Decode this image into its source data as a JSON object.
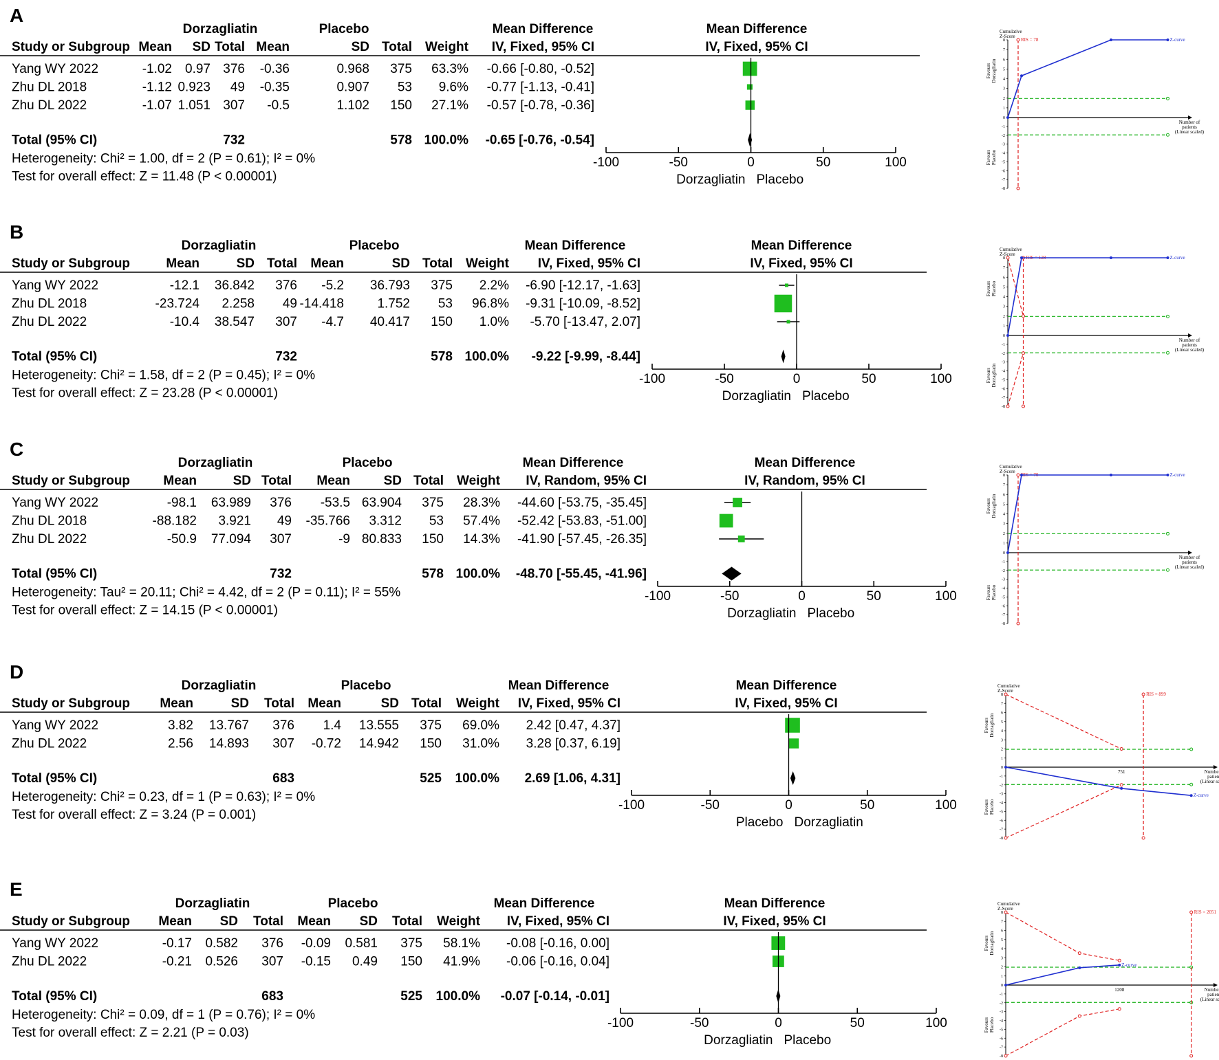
{
  "chart_data": [
    {
      "type": "forest",
      "panel": "A",
      "model_label": "IV, Fixed, 95% CI",
      "headers": {
        "study": "Study or Subgroup",
        "group1": "Dorzagliatin",
        "group2": "Placebo",
        "mean": "Mean",
        "sd": "SD",
        "total": "Total",
        "weight": "Weight",
        "md": "Mean Difference",
        "md_plot": "Mean Difference"
      },
      "studies": [
        {
          "name": "Yang WY 2022",
          "m1": "-1.02",
          "sd1": "0.97",
          "n1": "376",
          "m2": "-0.36",
          "sd2": "0.968",
          "n2": "375",
          "weight": "63.3%",
          "ci_text": "-0.66 [-0.80, -0.52]",
          "md": -0.66,
          "lo": -0.8,
          "hi": -0.52,
          "w": 63.3
        },
        {
          "name": "Zhu DL 2018",
          "m1": "-1.12",
          "sd1": "0.923",
          "n1": "49",
          "m2": "-0.35",
          "sd2": "0.907",
          "n2": "53",
          "weight": "9.6%",
          "ci_text": "-0.77 [-1.13, -0.41]",
          "md": -0.77,
          "lo": -1.13,
          "hi": -0.41,
          "w": 9.6
        },
        {
          "name": "Zhu DL 2022",
          "m1": "-1.07",
          "sd1": "1.051",
          "n1": "307",
          "m2": "-0.5",
          "sd2": "1.102",
          "n2": "150",
          "weight": "27.1%",
          "ci_text": "-0.57 [-0.78, -0.36]",
          "md": -0.57,
          "lo": -0.78,
          "hi": -0.36,
          "w": 27.1
        }
      ],
      "total": {
        "label": "Total (95% CI)",
        "n1": "732",
        "n2": "578",
        "weight": "100.0%",
        "ci_text": "-0.65 [-0.76, -0.54]",
        "md": -0.65,
        "lo": -0.76,
        "hi": -0.54
      },
      "heterogeneity": "Heterogeneity: Chi² = 1.00, df = 2 (P = 0.61); I² = 0%",
      "overall": "Test for overall effect: Z = 11.48 (P < 0.00001)",
      "axis": {
        "ticks": [
          -100,
          -50,
          0,
          50,
          100
        ],
        "tick_labels": [
          "-100",
          "-50",
          "0",
          "50",
          "100"
        ],
        "left_label": "Dorzagliatin",
        "right_label": "Placebo"
      },
      "tsa": {
        "title_line1": "Cumulative",
        "title_line2": "Z-Score",
        "ris_label": "RIS = 78",
        "z_label": "Z-curve",
        "fav_top": [
          "Favours",
          "Dorzagliatin"
        ],
        "fav_bottom": [
          "Favours",
          "Placebo"
        ],
        "x_title": [
          "Number of",
          "patients",
          "(Linear scaled)"
        ],
        "y_ticks": [
          "8",
          "7",
          "6",
          "5",
          "4",
          "3",
          "2",
          "1",
          "0",
          "-1",
          "-2",
          "-3",
          "-4",
          "-5",
          "-6",
          "-7",
          "-8"
        ],
        "sample_label": "",
        "zmax": 8,
        "ris_frac": 0.06,
        "z_curve": [
          [
            0,
            0
          ],
          [
            0.08,
            4.3
          ],
          [
            0.6,
            8
          ],
          [
            0.93,
            8
          ]
        ],
        "monitor_upper": [],
        "monitor_lower": [],
        "crit": 1.96
      }
    },
    {
      "type": "forest",
      "panel": "B",
      "model_label": "IV, Fixed, 95% CI",
      "headers": {
        "study": "Study or Subgroup",
        "group1": "Dorzagliatin",
        "group2": "Placebo",
        "mean": "Mean",
        "sd": "SD",
        "total": "Total",
        "weight": "Weight",
        "md": "Mean Difference",
        "md_plot": "Mean Difference"
      },
      "studies": [
        {
          "name": "Yang WY 2022",
          "m1": "-12.1",
          "sd1": "36.842",
          "n1": "376",
          "m2": "-5.2",
          "sd2": "36.793",
          "n2": "375",
          "weight": "2.2%",
          "ci_text": "-6.90 [-12.17, -1.63]",
          "md": -6.9,
          "lo": -12.17,
          "hi": -1.63,
          "w": 2.2
        },
        {
          "name": "Zhu DL 2018",
          "m1": "-23.724",
          "sd1": "2.258",
          "n1": "49",
          "m2": "-14.418",
          "sd2": "1.752",
          "n2": "53",
          "weight": "96.8%",
          "ci_text": "-9.31 [-10.09, -8.52]",
          "md": -9.31,
          "lo": -10.09,
          "hi": -8.52,
          "w": 96.8
        },
        {
          "name": "Zhu DL 2022",
          "m1": "-10.4",
          "sd1": "38.547",
          "n1": "307",
          "m2": "-4.7",
          "sd2": "40.417",
          "n2": "150",
          "weight": "1.0%",
          "ci_text": "-5.70 [-13.47, 2.07]",
          "md": -5.7,
          "lo": -13.47,
          "hi": 2.07,
          "w": 1.0
        }
      ],
      "total": {
        "label": "Total (95% CI)",
        "n1": "732",
        "n2": "578",
        "weight": "100.0%",
        "ci_text": "-9.22 [-9.99, -8.44]",
        "md": -9.22,
        "lo": -9.99,
        "hi": -8.44
      },
      "heterogeneity": "Heterogeneity: Chi² = 1.58, df = 2 (P = 0.45); I² = 0%",
      "overall": "Test for overall effect: Z = 23.28 (P < 0.00001)",
      "axis": {
        "ticks": [
          -100,
          -50,
          0,
          50,
          100
        ],
        "tick_labels": [
          "-100",
          "-50",
          "0",
          "50",
          "100"
        ],
        "left_label": "Dorzagliatin",
        "right_label": "Placebo"
      },
      "tsa": {
        "title_line1": "Cumulative",
        "title_line2": "Z-Score",
        "ris_label": "RIS = 128",
        "z_label": "Z-curve",
        "fav_top": [
          "Favours",
          "Placebo"
        ],
        "fav_bottom": [
          "Favours",
          "Dorzagliatin"
        ],
        "x_title": [
          "Number of",
          "patients",
          "(Linear scaled)"
        ],
        "y_ticks": [
          "8",
          "7",
          "6",
          "5",
          "4",
          "3",
          "2",
          "1",
          "0",
          "-1",
          "-2",
          "-3",
          "-4",
          "-5",
          "-6",
          "-7",
          "-8"
        ],
        "sample_label": "",
        "zmax": 8,
        "ris_frac": 0.09,
        "z_curve": [
          [
            0,
            0
          ],
          [
            0.08,
            8
          ],
          [
            0.6,
            8
          ],
          [
            0.93,
            8
          ]
        ],
        "monitor_upper": [
          [
            0,
            8
          ],
          [
            0.09,
            2
          ]
        ],
        "monitor_lower": [
          [
            0,
            -8
          ],
          [
            0.09,
            -2
          ]
        ],
        "crit": 1.96
      }
    },
    {
      "type": "forest",
      "panel": "C",
      "model_label": "IV, Random, 95% CI",
      "headers": {
        "study": "Study or Subgroup",
        "group1": "Dorzagliatin",
        "group2": "Placebo",
        "mean": "Mean",
        "sd": "SD",
        "total": "Total",
        "weight": "Weight",
        "md": "Mean Difference",
        "md_plot": "Mean Difference"
      },
      "studies": [
        {
          "name": "Yang WY 2022",
          "m1": "-98.1",
          "sd1": "63.989",
          "n1": "376",
          "m2": "-53.5",
          "sd2": "63.904",
          "n2": "375",
          "weight": "28.3%",
          "ci_text": "-44.60 [-53.75, -35.45]",
          "md": -44.6,
          "lo": -53.75,
          "hi": -35.45,
          "w": 28.3
        },
        {
          "name": "Zhu DL 2018",
          "m1": "-88.182",
          "sd1": "3.921",
          "n1": "49",
          "m2": "-35.766",
          "sd2": "3.312",
          "n2": "53",
          "weight": "57.4%",
          "ci_text": "-52.42 [-53.83, -51.00]",
          "md": -52.42,
          "lo": -53.83,
          "hi": -51.0,
          "w": 57.4
        },
        {
          "name": "Zhu DL 2022",
          "m1": "-50.9",
          "sd1": "77.094",
          "n1": "307",
          "m2": "-9",
          "sd2": "80.833",
          "n2": "150",
          "weight": "14.3%",
          "ci_text": "-41.90 [-57.45, -26.35]",
          "md": -41.9,
          "lo": -57.45,
          "hi": -26.35,
          "w": 14.3
        }
      ],
      "total": {
        "label": "Total (95% CI)",
        "n1": "732",
        "n2": "578",
        "weight": "100.0%",
        "ci_text": "-48.70 [-55.45, -41.96]",
        "md": -48.7,
        "lo": -55.45,
        "hi": -41.96
      },
      "heterogeneity": "Heterogeneity: Tau² = 20.11; Chi² = 4.42, df = 2 (P = 0.11); I² = 55%",
      "overall": "Test for overall effect: Z = 14.15 (P < 0.00001)",
      "axis": {
        "ticks": [
          -100,
          -50,
          0,
          50,
          100
        ],
        "tick_labels": [
          "-100",
          "-50",
          "0",
          "50",
          "100"
        ],
        "left_label": "Dorzagliatin",
        "right_label": "Placebo"
      },
      "tsa": {
        "title_line1": "Cumulative",
        "title_line2": "Z-Score",
        "ris_label": "RIS = 70",
        "z_label": "Z-curve",
        "fav_top": [
          "Favours",
          "Dorzagliatin"
        ],
        "fav_bottom": [
          "Favours",
          "Placebo"
        ],
        "x_title": [
          "Number of",
          "patients",
          "(Linear scaled)"
        ],
        "y_ticks": [
          "8",
          "7",
          "6",
          "5",
          "4",
          "3",
          "2",
          "1",
          "0",
          "-1",
          "-2",
          "-3",
          "-4",
          "-5",
          "-6",
          "-7",
          "-8"
        ],
        "sample_label": "",
        "zmax": 8,
        "ris_frac": 0.06,
        "z_curve": [
          [
            0,
            0
          ],
          [
            0.08,
            8
          ],
          [
            0.6,
            8
          ],
          [
            0.93,
            8
          ]
        ],
        "monitor_upper": [],
        "monitor_lower": [],
        "crit": 1.96
      }
    },
    {
      "type": "forest",
      "panel": "D",
      "model_label": "IV, Fixed, 95% CI",
      "headers": {
        "study": "Study or Subgroup",
        "group1": "Dorzagliatin",
        "group2": "Placebo",
        "mean": "Mean",
        "sd": "SD",
        "total": "Total",
        "weight": "Weight",
        "md": "Mean Difference",
        "md_plot": "Mean Difference"
      },
      "studies": [
        {
          "name": "Yang WY 2022",
          "m1": "3.82",
          "sd1": "13.767",
          "n1": "376",
          "m2": "1.4",
          "sd2": "13.555",
          "n2": "375",
          "weight": "69.0%",
          "ci_text": "2.42 [0.47, 4.37]",
          "md": 2.42,
          "lo": 0.47,
          "hi": 4.37,
          "w": 69.0
        },
        {
          "name": "Zhu DL 2022",
          "m1": "2.56",
          "sd1": "14.893",
          "n1": "307",
          "m2": "-0.72",
          "sd2": "14.942",
          "n2": "150",
          "weight": "31.0%",
          "ci_text": "3.28 [0.37, 6.19]",
          "md": 3.28,
          "lo": 0.37,
          "hi": 6.19,
          "w": 31.0
        }
      ],
      "total": {
        "label": "Total (95% CI)",
        "n1": "683",
        "n2": "525",
        "weight": "100.0%",
        "ci_text": "2.69 [1.06, 4.31]",
        "md": 2.69,
        "lo": 1.06,
        "hi": 4.31
      },
      "heterogeneity": "Heterogeneity: Chi² = 0.23, df = 1 (P = 0.63); I² = 0%",
      "overall": "Test for overall effect: Z = 3.24 (P = 0.001)",
      "axis": {
        "ticks": [
          -100,
          -50,
          0,
          50,
          100
        ],
        "tick_labels": [
          "-100",
          "-50",
          "0",
          "50",
          "100"
        ],
        "left_label": "Placebo",
        "right_label": "Dorzagliatin"
      },
      "tsa": {
        "title_line1": "Cumulative",
        "title_line2": "Z-Score",
        "ris_label": "RIS = 899",
        "z_label": "Z-curve",
        "fav_top": [
          "Favours",
          "Dorzagliatin"
        ],
        "fav_bottom": [
          "Favours",
          "Placebo"
        ],
        "x_title": [
          "Number of",
          "patients",
          "(Linear scaled)"
        ],
        "y_ticks": [
          "8",
          "7",
          "6",
          "5",
          "4",
          "3",
          "2",
          "1",
          "0",
          "-1",
          "-2",
          "-3",
          "-4",
          "-5",
          "-6",
          "-7",
          "-8"
        ],
        "sample_label": "751",
        "zmax": 8,
        "ris_frac": 0.69,
        "z_curve": [
          [
            0,
            0
          ],
          [
            0.58,
            -2.4
          ],
          [
            0.93,
            -3.2
          ]
        ],
        "monitor_upper": [
          [
            0,
            8
          ],
          [
            0.58,
            2
          ]
        ],
        "monitor_lower": [
          [
            0,
            -8
          ],
          [
            0.58,
            -2
          ]
        ],
        "crit": 1.96
      }
    },
    {
      "type": "forest",
      "panel": "E",
      "model_label": "IV, Fixed, 95% CI",
      "headers": {
        "study": "Study or Subgroup",
        "group1": "Dorzagliatin",
        "group2": "Placebo",
        "mean": "Mean",
        "sd": "SD",
        "total": "Total",
        "weight": "Weight",
        "md": "Mean Difference",
        "md_plot": "Mean Difference"
      },
      "studies": [
        {
          "name": "Yang WY 2022",
          "m1": "-0.17",
          "sd1": "0.582",
          "n1": "376",
          "m2": "-0.09",
          "sd2": "0.581",
          "n2": "375",
          "weight": "58.1%",
          "ci_text": "-0.08 [-0.16, 0.00]",
          "md": -0.08,
          "lo": -0.16,
          "hi": 0.0,
          "w": 58.1
        },
        {
          "name": "Zhu DL 2022",
          "m1": "-0.21",
          "sd1": "0.526",
          "n1": "307",
          "m2": "-0.15",
          "sd2": "0.49",
          "n2": "150",
          "weight": "41.9%",
          "ci_text": "-0.06 [-0.16, 0.04]",
          "md": -0.06,
          "lo": -0.16,
          "hi": 0.04,
          "w": 41.9
        }
      ],
      "total": {
        "label": "Total (95% CI)",
        "n1": "683",
        "n2": "525",
        "weight": "100.0%",
        "ci_text": "-0.07 [-0.14, -0.01]",
        "md": -0.07,
        "lo": -0.14,
        "hi": -0.01
      },
      "heterogeneity": "Heterogeneity: Chi² = 0.09, df = 1 (P = 0.76); I² = 0%",
      "overall": "Test for overall effect: Z = 2.21 (P = 0.03)",
      "axis": {
        "ticks": [
          -100,
          -50,
          0,
          50,
          100
        ],
        "tick_labels": [
          "-100",
          "-50",
          "0",
          "50",
          "100"
        ],
        "left_label": "Dorzagliatin",
        "right_label": "Placebo"
      },
      "tsa": {
        "title_line1": "Cumulative",
        "title_line2": "Z-Score",
        "ris_label": "RIS = 2051",
        "z_label": "Z-curve",
        "fav_top": [
          "Favours",
          "Dorzagliatin"
        ],
        "fav_bottom": [
          "Favours",
          "Placebo"
        ],
        "x_title": [
          "Number of",
          "patients",
          "(Linear scaled)"
        ],
        "y_ticks": [
          "8",
          "7",
          "6",
          "5",
          "4",
          "3",
          "2",
          "1",
          "0",
          "-1",
          "-2",
          "-3",
          "-4",
          "-5",
          "-6",
          "-7",
          "-8"
        ],
        "sample_label": "1208",
        "zmax": 8,
        "ris_frac": 0.93,
        "z_curve": [
          [
            0,
            0
          ],
          [
            0.37,
            1.9
          ],
          [
            0.57,
            2.2
          ]
        ],
        "monitor_upper": [
          [
            0,
            8
          ],
          [
            0.37,
            3.5
          ],
          [
            0.57,
            2.7
          ]
        ],
        "monitor_lower": [
          [
            0,
            -8
          ],
          [
            0.37,
            -3.5
          ],
          [
            0.57,
            -2.7
          ]
        ],
        "crit": 1.96
      }
    }
  ]
}
